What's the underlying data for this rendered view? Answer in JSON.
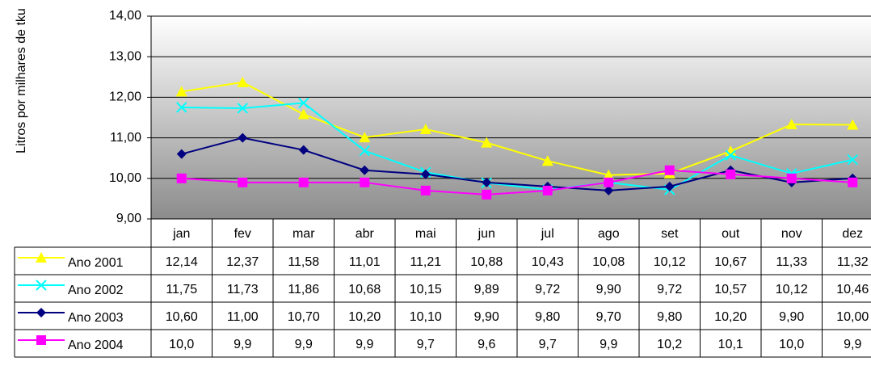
{
  "chart_data": {
    "type": "line",
    "y_label": "Litros por milhares de tku",
    "categories": [
      "jan",
      "fev",
      "mar",
      "abr",
      "mai",
      "jun",
      "jul",
      "ago",
      "set",
      "out",
      "nov",
      "dez"
    ],
    "ylim": [
      9,
      14
    ],
    "yticks": [
      {
        "value": 9,
        "label": "9,00"
      },
      {
        "value": 10,
        "label": "10,00"
      },
      {
        "value": 11,
        "label": "11,00"
      },
      {
        "value": 12,
        "label": "12,00"
      },
      {
        "value": 13,
        "label": "13,00"
      },
      {
        "value": 14,
        "label": "14,00"
      }
    ],
    "grid": true,
    "series": [
      {
        "name": "Ano 2001",
        "color": "#ffff00",
        "marker": "triangle",
        "values": [
          12.14,
          12.37,
          11.58,
          11.01,
          11.21,
          10.88,
          10.43,
          10.08,
          10.12,
          10.67,
          11.33,
          11.32
        ],
        "value_labels": [
          "12,14",
          "12,37",
          "11,58",
          "11,01",
          "11,21",
          "10,88",
          "10,43",
          "10,08",
          "10,12",
          "10,67",
          "11,33",
          "11,32"
        ]
      },
      {
        "name": "Ano 2002",
        "color": "#00ffff",
        "marker": "x",
        "values": [
          11.75,
          11.73,
          11.86,
          10.68,
          10.15,
          9.89,
          9.72,
          9.9,
          9.72,
          10.57,
          10.12,
          10.46
        ],
        "value_labels": [
          "11,75",
          "11,73",
          "11,86",
          "10,68",
          "10,15",
          "9,89",
          "9,72",
          "9,90",
          "9,72",
          "10,57",
          "10,12",
          "10,46"
        ]
      },
      {
        "name": "Ano 2003",
        "color": "#000080",
        "marker": "diamond",
        "values": [
          10.6,
          11.0,
          10.7,
          10.2,
          10.1,
          9.9,
          9.8,
          9.7,
          9.8,
          10.2,
          9.9,
          10.0
        ],
        "value_labels": [
          "10,60",
          "11,00",
          "10,70",
          "10,20",
          "10,10",
          "9,90",
          "9,80",
          "9,70",
          "9,80",
          "10,20",
          "9,90",
          "10,00"
        ]
      },
      {
        "name": "Ano 2004",
        "color": "#ff00ff",
        "marker": "square",
        "values": [
          10.0,
          9.9,
          9.9,
          9.9,
          9.7,
          9.6,
          9.7,
          9.9,
          10.2,
          10.1,
          10.0,
          9.9
        ],
        "value_labels": [
          "10,0",
          "9,9",
          "9,9",
          "9,9",
          "9,7",
          "9,6",
          "9,7",
          "9,9",
          "10,2",
          "10,1",
          "10,0",
          "9,9"
        ]
      }
    ]
  }
}
